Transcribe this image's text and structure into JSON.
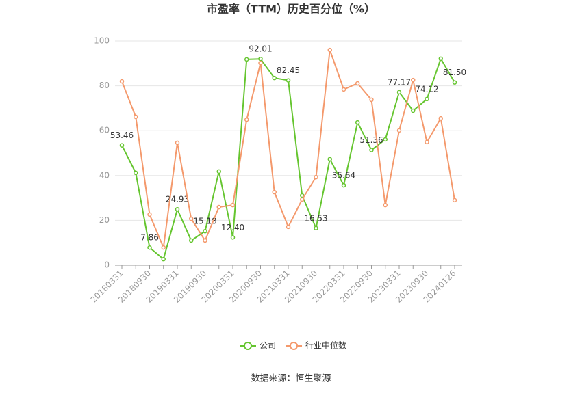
{
  "chart_data": {
    "type": "line",
    "title": "市盈率（TTM）历史百分位（%）",
    "source": "数据来源：恒生聚源",
    "categories": [
      "20180331",
      null,
      "20180930",
      null,
      "20190331",
      null,
      "20190930",
      null,
      "20200331",
      null,
      "20200930",
      null,
      "20210331",
      null,
      "20210930",
      null,
      "20220331",
      null,
      "20220930",
      null,
      "20230331",
      null,
      "20230930",
      null,
      "20240126"
    ],
    "series": [
      {
        "name": "公司",
        "color": "#65c52f",
        "values": [
          53.46,
          41.2,
          7.86,
          2.7,
          24.93,
          11.0,
          15.18,
          41.8,
          12.4,
          91.8,
          92.01,
          83.5,
          82.45,
          31.1,
          16.53,
          47.3,
          35.64,
          63.7,
          51.36,
          56.1,
          77.17,
          68.9,
          74.12,
          92.1,
          81.5
        ],
        "value_labels": [
          "53.46",
          null,
          "7.86",
          null,
          "24.93",
          null,
          "15.18",
          null,
          "12.40",
          null,
          "92.01",
          null,
          "82.45",
          null,
          "16.53",
          null,
          "35.64",
          null,
          "51.36",
          null,
          "77.17",
          null,
          "74.12",
          null,
          "81.50"
        ]
      },
      {
        "name": "行业中位数",
        "color": "#f4996c",
        "values": [
          82.0,
          66.2,
          22.6,
          7.9,
          54.6,
          20.7,
          11.0,
          25.9,
          26.8,
          64.9,
          90.2,
          32.6,
          17.1,
          29.3,
          39.3,
          96.0,
          78.4,
          81.1,
          73.8,
          26.8,
          60.1,
          82.6,
          54.9,
          65.5,
          29.0
        ]
      }
    ],
    "ylim": [
      0,
      100
    ],
    "yticks": [
      0,
      20,
      40,
      60,
      80,
      100
    ],
    "grid": true,
    "legend": "bottom"
  }
}
